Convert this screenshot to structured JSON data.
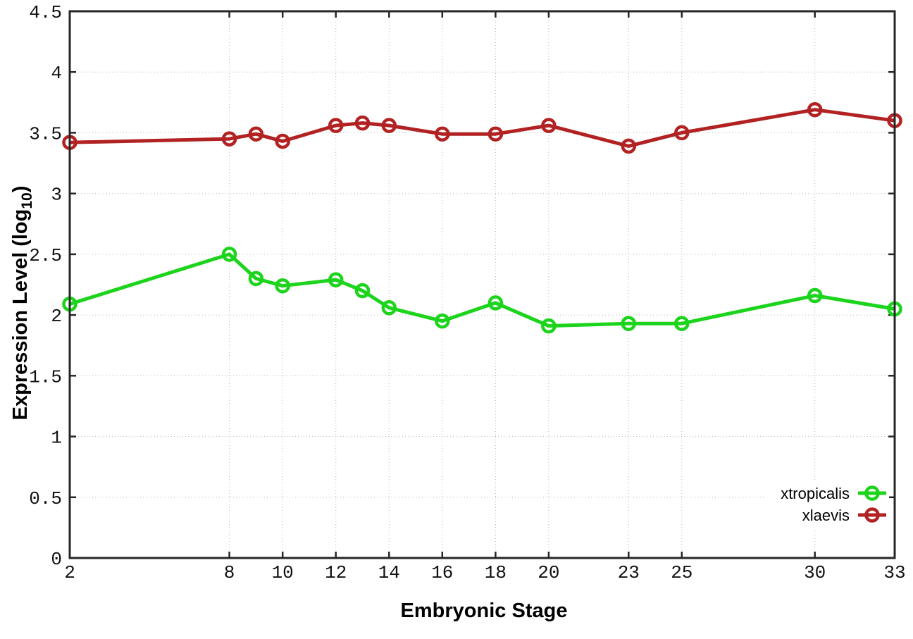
{
  "chart_data": {
    "type": "line",
    "title": "",
    "xlabel": "Embryonic Stage",
    "ylabel": "Expression Level (log10)",
    "ylabel_parts": {
      "main": "Expression Level (log",
      "sub": "10",
      "end": ")"
    },
    "x": [
      2,
      8,
      9,
      10,
      12,
      13,
      14,
      16,
      18,
      20,
      23,
      25,
      30,
      33
    ],
    "xticks": [
      2,
      8,
      10,
      12,
      14,
      16,
      18,
      20,
      23,
      25,
      30,
      33
    ],
    "xtick_labels": [
      "2",
      "8",
      "10",
      "12",
      "14",
      "16",
      "18",
      "20",
      "23",
      "25",
      "30",
      "33"
    ],
    "yticks": [
      0,
      0.5,
      1,
      1.5,
      2,
      2.5,
      3,
      3.5,
      4,
      4.5
    ],
    "ytick_labels": [
      "0",
      "0.5",
      "1",
      "1.5",
      "2",
      "2.5",
      "3",
      "3.5",
      "4",
      "4.5"
    ],
    "xlim": [
      2,
      33
    ],
    "ylim": [
      0,
      4.5
    ],
    "grid": true,
    "legend_position": "bottom-right",
    "series": [
      {
        "name": "xtropicalis",
        "color": "#1bd41b",
        "values": [
          2.09,
          2.5,
          2.3,
          2.24,
          2.29,
          2.2,
          2.06,
          1.95,
          2.1,
          1.91,
          1.93,
          1.93,
          2.16,
          2.05
        ]
      },
      {
        "name": "xlaevis",
        "color": "#b22222",
        "values": [
          3.42,
          3.45,
          3.49,
          3.43,
          3.56,
          3.58,
          3.56,
          3.49,
          3.49,
          3.56,
          3.39,
          3.5,
          3.69,
          3.6
        ]
      }
    ]
  }
}
